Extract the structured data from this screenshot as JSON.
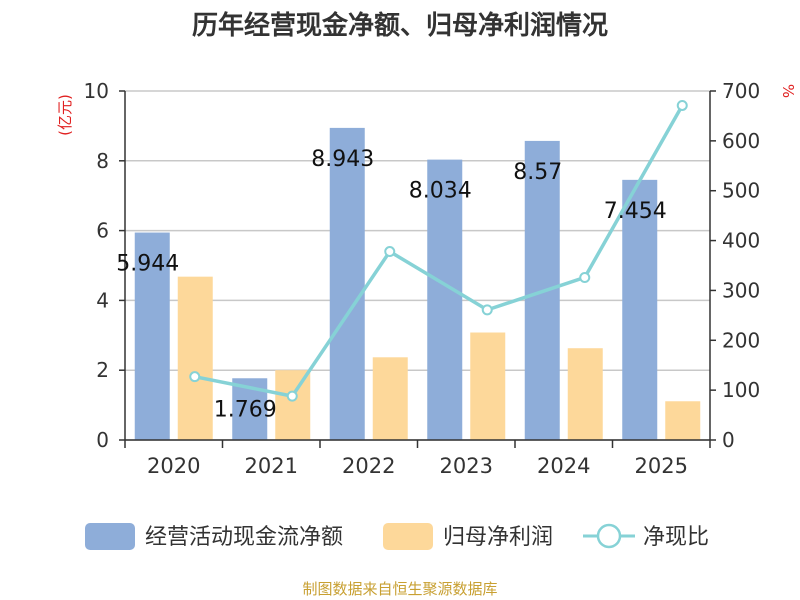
{
  "chart_data": {
    "type": "bar",
    "title": "历年经营现金净额、归母净利润情况",
    "categories": [
      "2020",
      "2021",
      "2022",
      "2023",
      "2024",
      "2025"
    ],
    "y_left_label": "(亿元)",
    "y_right_label": "%",
    "ylim_left": [
      0,
      10
    ],
    "yticks_left": [
      "0",
      "2",
      "4",
      "6",
      "8",
      "10"
    ],
    "ylim_right": [
      0,
      700
    ],
    "yticks_right": [
      "0",
      "100",
      "200",
      "300",
      "400",
      "500",
      "600",
      "700"
    ],
    "series": [
      {
        "name": "经营活动现金流净额",
        "type": "bar",
        "axis": "left",
        "color": "#8eadd9",
        "values": [
          5.944,
          1.769,
          8.943,
          8.034,
          8.57,
          7.454
        ],
        "labels": [
          "5.944",
          "1.769",
          "8.943",
          "8.034",
          "8.57",
          "7.454"
        ]
      },
      {
        "name": "归母净利润",
        "type": "bar",
        "axis": "left",
        "color": "#fdd89a",
        "values": [
          4.68,
          2.0,
          2.37,
          3.08,
          2.63,
          1.11
        ]
      },
      {
        "name": "净现比",
        "type": "line",
        "axis": "right",
        "color": "#86d2d6",
        "values": [
          127,
          88,
          378,
          261,
          326,
          671
        ]
      }
    ],
    "grid": true,
    "legend_position": "bottom"
  },
  "source_text": "制图数据来自恒生聚源数据库"
}
